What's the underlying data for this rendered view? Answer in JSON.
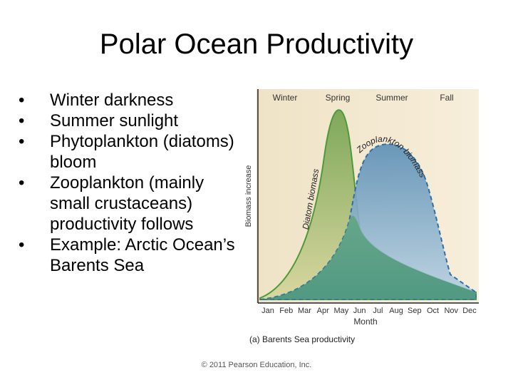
{
  "title": "Polar Ocean Productivity",
  "bullets": [
    "Winter darkness",
    "Summer sunlight",
    "Phytoplankton (diatoms) bloom",
    "Zooplankton (mainly small crustaceans) productivity follows",
    "Example:  Arctic Ocean’s Barents Sea"
  ],
  "figure": {
    "seasons": [
      "Winter",
      "Spring",
      "Summer",
      "Fall"
    ],
    "y_label": "Biomass increase",
    "curve_labels": [
      "Diatom biomass",
      "Zooplankton biomass"
    ],
    "months": [
      "Jan",
      "Feb",
      "Mar",
      "Apr",
      "May",
      "Jun",
      "Jul",
      "Aug",
      "Sep",
      "Oct",
      "Nov",
      "Dec"
    ],
    "x_label": "Month",
    "caption": "(a) Barents Sea productivity"
  },
  "footer": "© 2011 Pearson Education, Inc."
}
